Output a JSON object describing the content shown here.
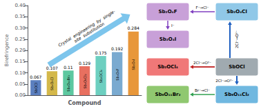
{
  "chart_data": {
    "type": "bar",
    "categories": [
      "SbOCl",
      "Sb₄O₅Cl",
      "Sb₈O₁₁Br₂",
      "Sb₄O₅Cl₂",
      "Sb₂OCl₄",
      "Sb₄O₅F",
      "Sb₂O₄I"
    ],
    "values": [
      0.067,
      0.107,
      0.11,
      0.129,
      0.175,
      0.192,
      0.284
    ],
    "colors": [
      "#5b7fbf",
      "#d4b84a",
      "#5dc8a0",
      "#e87060",
      "#6dcfc0",
      "#7aaad0",
      "#e8973a"
    ],
    "data_labels": true,
    "ylabel": "Birefringence",
    "xlabel": "Compound",
    "ylim": [
      0,
      0.4
    ],
    "yticks": [
      {
        "value": 0.0,
        "label": "0.00"
      },
      0.05,
      {
        "value": 0.1,
        "label": "0.10"
      },
      0.15,
      {
        "value": 0.2,
        "label": "0.20"
      },
      0.25,
      {
        "value": 0.3,
        "label": "0.30"
      },
      0.35,
      {
        "value": 0.4,
        "label": "0.40"
      }
    ],
    "grid": false,
    "tick_labels": "y",
    "annotations": [
      {
        "text": "Crystal  engineering  by  single-\nsite  substitution",
        "color": "#60b8e8"
      },
      {
        "text": "Sb₂O₄F",
        "color": "#c8a0d8"
      },
      {
        "text": "Sb₂O₄Cl",
        "color": "#90c8e8"
      },
      {
        "text": "Sb₂O₄I",
        "color": "#c8a0d8"
      },
      {
        "text": "Sb₂OCl₄",
        "color": "#f07878"
      },
      {
        "text": "SbOCl",
        "color": "#a0aab0"
      },
      {
        "text": "Sb₈O₁₁Br₂",
        "color": "#90c870"
      },
      {
        "text": "Sb₈O₁₁Cl₂",
        "color": "#70b8e0"
      },
      {
        "text": "F⁻→Cl⁻",
        "color": "#8040c0"
      },
      {
        "text": "I⁻",
        "color": "#8040c0"
      },
      {
        "text": "2Cl⁻→O²⁻",
        "color": "#2060c0"
      },
      {
        "text": "2Cl⁻→O²⁻",
        "color": "#c02020"
      },
      {
        "text": "2Cl⁻→O²⁻",
        "color": "#2060c0"
      },
      {
        "text": "Br⁻→Cl⁻",
        "color": "#30a050"
      }
    ]
  }
}
